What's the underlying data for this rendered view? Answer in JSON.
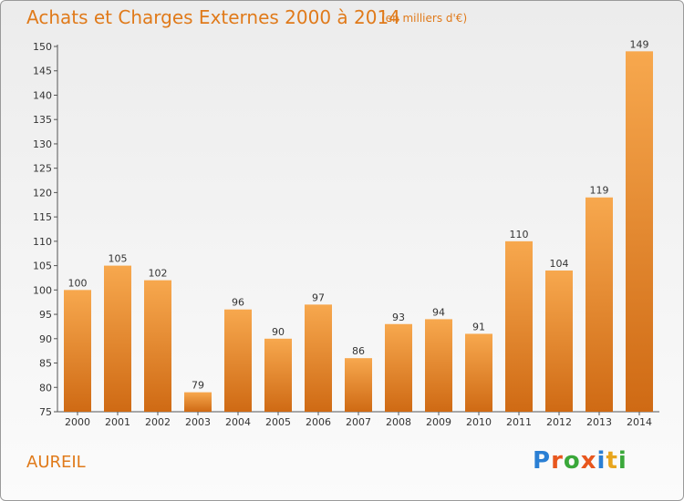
{
  "header": {
    "title": "Achats et Charges Externes 2000 à 2014",
    "subtitle": "(en milliers d'€)"
  },
  "footer": {
    "place": "AUREIL",
    "logo_letters": [
      "P",
      "r",
      "o",
      "x",
      "i",
      "t",
      "i"
    ],
    "logo_colors": [
      "#2a7fd4",
      "#e8571e",
      "#3aa83a",
      "#e8571e",
      "#2a7fd4",
      "#e8a51e",
      "#3aa83a"
    ]
  },
  "colors": {
    "bar_light": "#f7a84e",
    "bar_dark": "#cf6a14",
    "text_accent": "#e07a1a"
  },
  "chart_data": {
    "type": "bar",
    "title": "Achats et Charges Externes 2000 à 2014",
    "subtitle": "(en milliers d'€)",
    "categories": [
      "2000",
      "2001",
      "2002",
      "2003",
      "2004",
      "2005",
      "2006",
      "2007",
      "2008",
      "2009",
      "2010",
      "2011",
      "2012",
      "2013",
      "2014"
    ],
    "values": [
      100,
      105,
      102,
      79,
      96,
      90,
      97,
      86,
      93,
      94,
      91,
      110,
      104,
      119,
      149
    ],
    "ylim": [
      75,
      150
    ],
    "yticks": [
      75,
      80,
      85,
      90,
      95,
      100,
      105,
      110,
      115,
      120,
      125,
      130,
      135,
      140,
      145,
      150
    ],
    "grid": false,
    "legend": "none"
  }
}
